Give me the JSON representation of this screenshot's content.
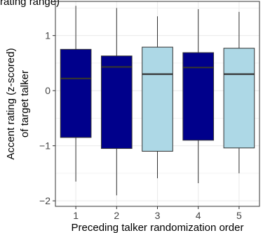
{
  "top_fragment": "rating range)",
  "chart_data": {
    "type": "box",
    "title": "",
    "xlabel": "Preceding talker randomization order",
    "ylabel_lines": [
      "Accent rating (z-scored)",
      "of target talker"
    ],
    "ylim": [
      -2.1,
      1.62
    ],
    "yticks": [
      -2,
      -1,
      0,
      1
    ],
    "grid": true,
    "categories": [
      "1",
      "2",
      "3",
      "4",
      "5"
    ],
    "colors": {
      "dark": "#00008b",
      "light": "#add8e6",
      "median": "#333333",
      "whisker": "#333333",
      "grid": "#ebebeb",
      "panel_border": "#333333"
    },
    "boxes": [
      {
        "category": "1",
        "whisker_low": -1.65,
        "q1": -0.85,
        "median": 0.22,
        "q3": 0.75,
        "whisker_high": 1.54,
        "fill": "dark"
      },
      {
        "category": "2",
        "whisker_low": -1.9,
        "q1": -1.05,
        "median": 0.43,
        "q3": 0.63,
        "whisker_high": 1.5,
        "fill": "dark"
      },
      {
        "category": "3",
        "whisker_low": -1.59,
        "q1": -1.1,
        "median": 0.3,
        "q3": 0.79,
        "whisker_high": 1.35,
        "fill": "light"
      },
      {
        "category": "4",
        "whisker_low": -1.68,
        "q1": -0.9,
        "median": 0.42,
        "q3": 0.69,
        "whisker_high": 1.48,
        "fill": "dark"
      },
      {
        "category": "5",
        "whisker_low": -1.5,
        "q1": -1.04,
        "median": 0.3,
        "q3": 0.77,
        "whisker_high": 1.43,
        "fill": "light"
      }
    ]
  }
}
